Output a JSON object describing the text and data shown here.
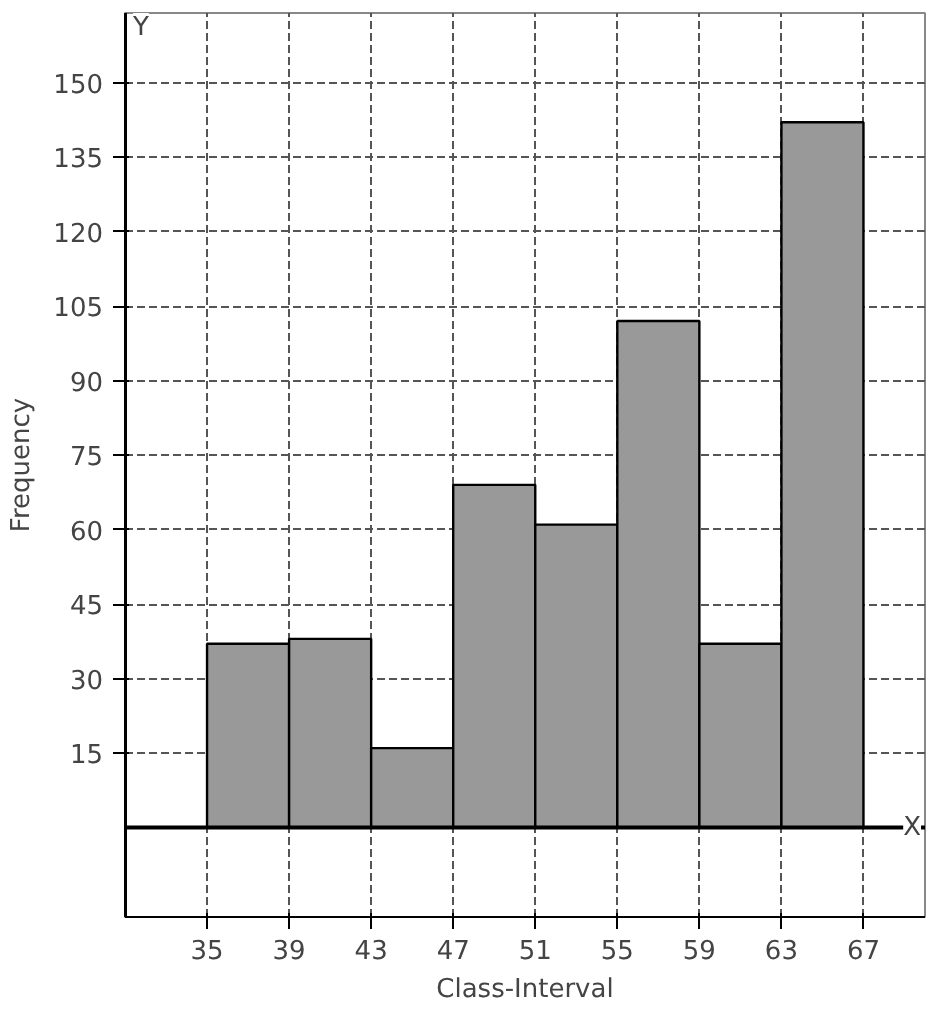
{
  "chart_data": {
    "type": "histogram",
    "xlabel": "Class-Interval",
    "ylabel": "Frequency",
    "bins": [
      35,
      39,
      43,
      47,
      51,
      55,
      59,
      63,
      67
    ],
    "values": [
      37,
      38,
      16,
      69,
      61,
      102,
      37,
      142
    ],
    "color": "#999999",
    "xlim": [
      31,
      70
    ],
    "ylim": [
      -18,
      164
    ],
    "xticks": [
      35,
      39,
      43,
      47,
      51,
      55,
      59,
      63,
      67
    ],
    "yticks": [
      15,
      30,
      45,
      60,
      75,
      90,
      105,
      120,
      135,
      150
    ],
    "grid": true,
    "annotations": [
      "Y",
      "X"
    ]
  }
}
